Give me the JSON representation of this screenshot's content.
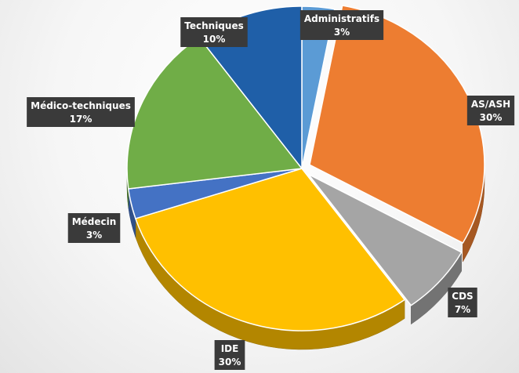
{
  "chart_data": {
    "type": "pie",
    "categories": [
      "Administratifs",
      "AS/ASH",
      "CDS",
      "IDE",
      "Médecin",
      "Médico-techniques",
      "Techniques"
    ],
    "values": [
      3,
      30,
      7,
      30,
      3,
      17,
      10
    ],
    "value_labels": [
      "3%",
      "30%",
      "7%",
      "30%",
      "3%",
      "17%",
      "10%"
    ],
    "exploded": [
      false,
      true,
      true,
      false,
      false,
      false,
      false
    ],
    "legend": "none",
    "colors": [
      "#5B9BD5",
      "#ED7D31",
      "#A5A5A5",
      "#FFC000",
      "#4472C4",
      "#70AD47",
      "#1F5FA8"
    ],
    "label_background": "#3A3A3A",
    "label_text_color": "#FFFFFF"
  }
}
